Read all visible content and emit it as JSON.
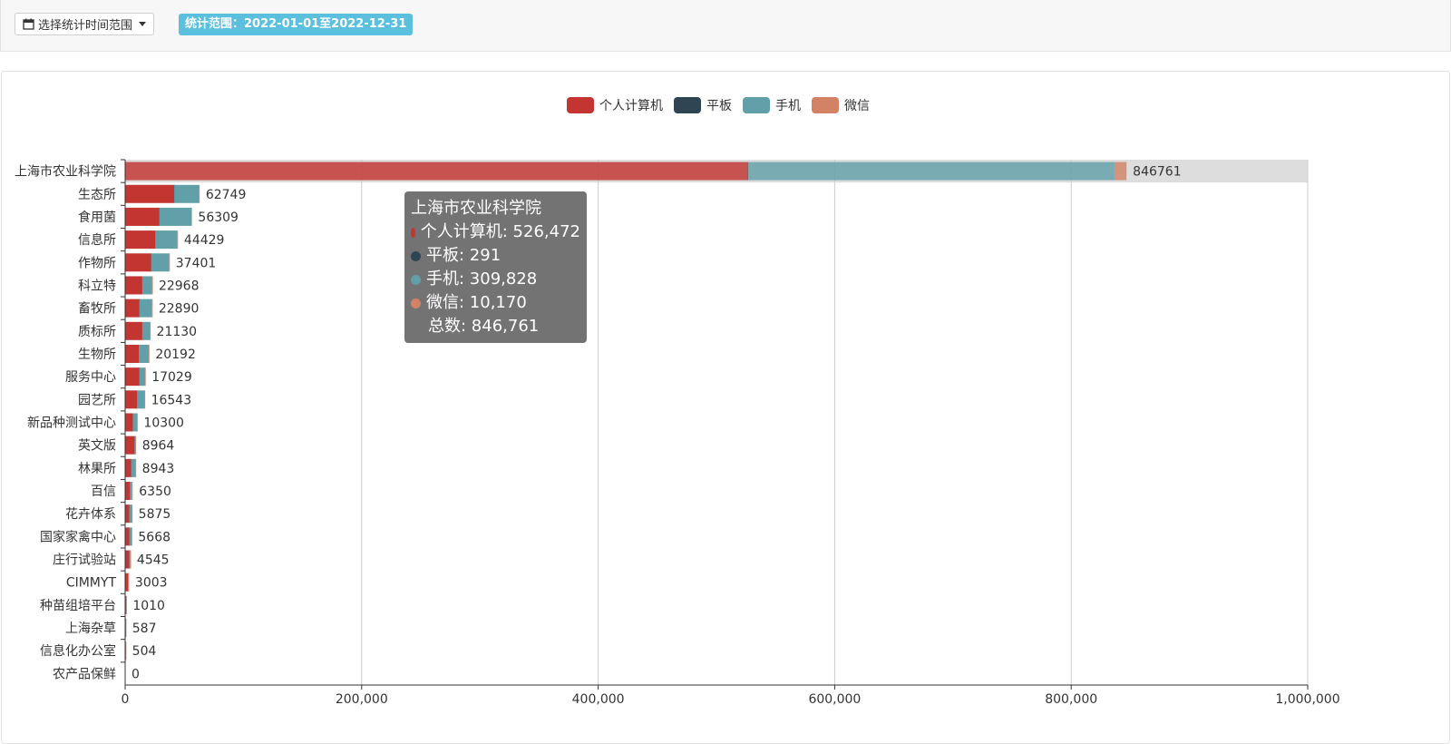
{
  "toolbar": {
    "range_button_label": "选择统计时间范围",
    "range_badge": "统计范围：2022-01-01至2022-12-31"
  },
  "colors": {
    "pc": "#c23531",
    "tablet": "#2f4554",
    "mobile": "#61a0a8",
    "wechat": "#d48265",
    "highlight_bg": "#dddddd",
    "grid": "#cccccc",
    "axis": "#333333"
  },
  "chart_data": {
    "type": "bar",
    "orientation": "horizontal",
    "stacked": true,
    "title": "",
    "xlabel": "",
    "ylabel": "",
    "xlim": [
      0,
      1000000
    ],
    "x_ticks": [
      0,
      200000,
      400000,
      600000,
      800000,
      1000000
    ],
    "x_tick_labels": [
      "0",
      "200,000",
      "400,000",
      "600,000",
      "800,000",
      "1,000,000"
    ],
    "grid": true,
    "legend_position": "top-center",
    "legend": [
      "个人计算机",
      "平板",
      "手机",
      "微信"
    ],
    "categories": [
      "上海市农业科学院",
      "生态所",
      "食用菌",
      "信息所",
      "作物所",
      "科立特",
      "畜牧所",
      "质标所",
      "生物所",
      "服务中心",
      "园艺所",
      "新品种测试中心",
      "英文版",
      "林果所",
      "百信",
      "花卉体系",
      "国家家禽中心",
      "庄行试验站",
      "CIMMYT",
      "种苗组培平台",
      "上海杂草",
      "信息化办公室",
      "农产品保鲜"
    ],
    "series": [
      {
        "name": "个人计算机",
        "color_key": "pc",
        "values": [
          526472,
          41500,
          29000,
          25500,
          22000,
          14500,
          12000,
          14500,
          11500,
          12000,
          10000,
          6500,
          8000,
          5000,
          4000,
          3500,
          3600,
          3500,
          2300,
          700,
          400,
          350,
          0
        ]
      },
      {
        "name": "平板",
        "color_key": "tablet",
        "values": [
          291,
          50,
          40,
          30,
          30,
          20,
          20,
          20,
          20,
          15,
          15,
          10,
          10,
          10,
          5,
          5,
          5,
          5,
          3,
          1,
          1,
          1,
          0
        ]
      },
      {
        "name": "手机",
        "color_key": "mobile",
        "values": [
          309828,
          21000,
          27000,
          18700,
          15300,
          8400,
          10800,
          6600,
          8600,
          5000,
          6500,
          3700,
          900,
          3900,
          1500,
          2300,
          2000,
          1000,
          600,
          300,
          180,
          150,
          0
        ]
      },
      {
        "name": "微信",
        "color_key": "wechat",
        "values": [
          10170,
          199,
          269,
          199,
          71,
          48,
          70,
          10,
          72,
          14,
          28,
          90,
          54,
          33,
          845,
          70,
          63,
          40,
          100,
          9,
          6,
          3,
          0
        ]
      }
    ],
    "totals": [
      846761,
      62749,
      56309,
      44429,
      37401,
      22968,
      22890,
      21130,
      20192,
      17029,
      16543,
      10300,
      8964,
      8943,
      6350,
      5875,
      5668,
      4545,
      3003,
      1010,
      587,
      504,
      0
    ],
    "highlighted_index": 0
  },
  "tooltip": {
    "title": "上海市农业科学院",
    "rows": [
      {
        "color_key": "pc",
        "text": "个人计算机: 526,472"
      },
      {
        "color_key": "tablet",
        "text": "平板: 291"
      },
      {
        "color_key": "mobile",
        "text": "手机: 309,828"
      },
      {
        "color_key": "wechat",
        "text": "微信: 10,170"
      }
    ],
    "total": "总数: 846,761"
  }
}
